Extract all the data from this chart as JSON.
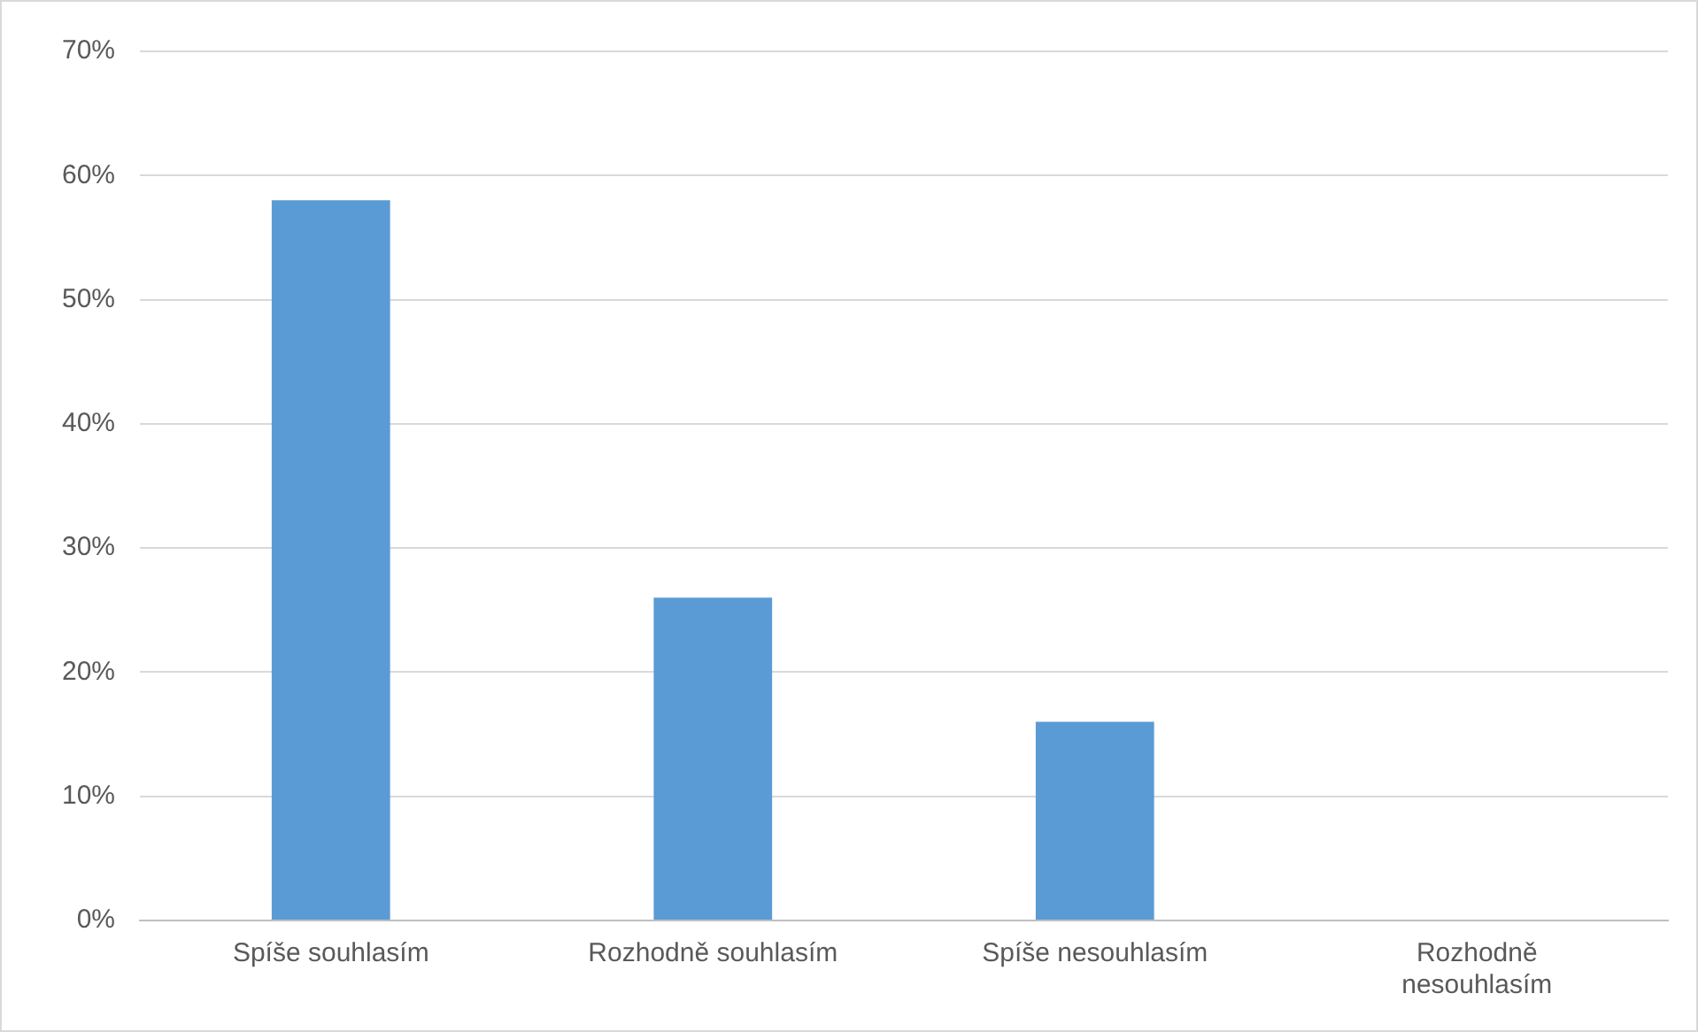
{
  "chart_data": {
    "type": "bar",
    "categories": [
      "Spíše souhlasím",
      "Rozhodně souhlasím",
      "Spíše nesouhlasím",
      "Rozhodně nesouhlasím"
    ],
    "values": [
      58,
      26,
      16,
      0
    ],
    "color": "#5b9bd5",
    "ylim": [
      0,
      70
    ],
    "yticks": [
      {
        "value": 0,
        "label": "0%"
      },
      {
        "value": 10,
        "label": "10%"
      },
      {
        "value": 20,
        "label": "20%"
      },
      {
        "value": 30,
        "label": "30%"
      },
      {
        "value": 40,
        "label": "40%"
      },
      {
        "value": 50,
        "label": "50%"
      },
      {
        "value": 60,
        "label": "60%"
      },
      {
        "value": 70,
        "label": "70%"
      }
    ],
    "grid": "y",
    "legend": false
  }
}
